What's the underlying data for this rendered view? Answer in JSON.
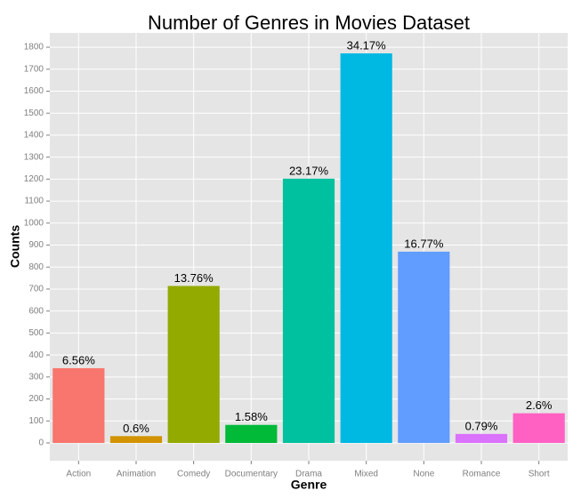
{
  "chart_data": {
    "type": "bar",
    "title": "Number of Genres in Movies Dataset",
    "x_label": "Genre",
    "y_label": "Counts",
    "categories": [
      "Action",
      "Animation",
      "Comedy",
      "Documentary",
      "Drama",
      "Mixed",
      "None",
      "Romance",
      "Short"
    ],
    "values": [
      340,
      31,
      714,
      82,
      1202,
      1772,
      870,
      41,
      135
    ],
    "labels": [
      "6.56%",
      "0.6%",
      "13.76%",
      "1.58%",
      "23.17%",
      "34.17%",
      "16.77%",
      "0.79%",
      "2.6%"
    ],
    "colors": [
      "#F8766D",
      "#D39200",
      "#93AA00",
      "#00BA38",
      "#00C19F",
      "#00B9E3",
      "#619CFF",
      "#DB72FB",
      "#FF61C3"
    ],
    "ylim": [
      -81,
      1865
    ],
    "yticks": [
      0,
      100,
      200,
      300,
      400,
      500,
      600,
      700,
      800,
      900,
      1000,
      1100,
      1200,
      1300,
      1400,
      1500,
      1600,
      1700,
      1800
    ],
    "grid": true
  }
}
